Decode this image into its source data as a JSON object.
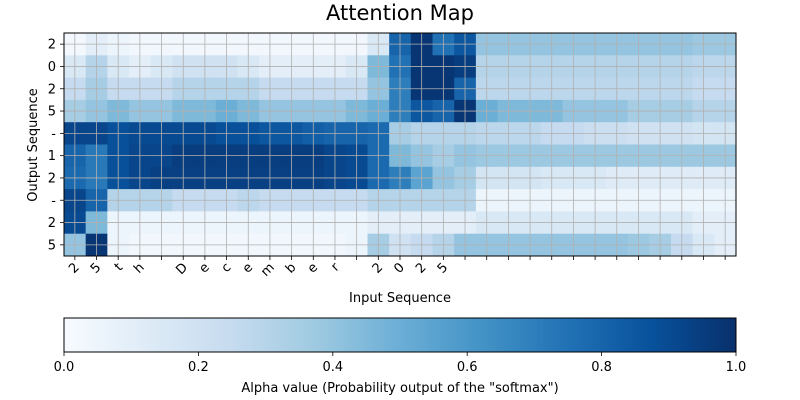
{
  "chart_data": {
    "type": "heatmap",
    "title": "Attention Map",
    "xlabel": "Input Sequence",
    "ylabel": "Output Sequence",
    "x_tick_labels": [
      "2",
      "5",
      "t",
      "h",
      "",
      "D",
      "e",
      "c",
      "e",
      "m",
      "b",
      "e",
      "r",
      "",
      "2",
      "0",
      "2",
      "5",
      "",
      "",
      "",
      "",
      "",
      "",
      "",
      "",
      "",
      "",
      "",
      "",
      ""
    ],
    "y_tick_labels": [
      "2",
      "0",
      "2",
      "5",
      "-",
      "1",
      "2",
      "-",
      "2",
      "5"
    ],
    "colormap": "Blues",
    "grid": true,
    "value_range": [
      0.0,
      1.0
    ],
    "values": [
      [
        0.02,
        0.1,
        0.05,
        0.03,
        0.03,
        0.03,
        0.03,
        0.03,
        0.03,
        0.03,
        0.03,
        0.03,
        0.03,
        0.03,
        0.15,
        0.8,
        0.98,
        0.75,
        0.85,
        0.4,
        0.4,
        0.4,
        0.4,
        0.4,
        0.4,
        0.4,
        0.4,
        0.4,
        0.4,
        0.38,
        0.38
      ],
      [
        0.15,
        0.3,
        0.15,
        0.1,
        0.15,
        0.2,
        0.2,
        0.2,
        0.15,
        0.1,
        0.1,
        0.1,
        0.1,
        0.15,
        0.45,
        0.75,
        0.98,
        0.98,
        0.95,
        0.3,
        0.3,
        0.3,
        0.3,
        0.3,
        0.3,
        0.3,
        0.3,
        0.3,
        0.3,
        0.28,
        0.28
      ],
      [
        0.25,
        0.35,
        0.25,
        0.25,
        0.25,
        0.3,
        0.3,
        0.3,
        0.3,
        0.25,
        0.25,
        0.25,
        0.25,
        0.25,
        0.4,
        0.7,
        0.98,
        0.98,
        0.8,
        0.28,
        0.28,
        0.28,
        0.28,
        0.28,
        0.28,
        0.28,
        0.28,
        0.28,
        0.28,
        0.25,
        0.25
      ],
      [
        0.35,
        0.4,
        0.45,
        0.4,
        0.4,
        0.45,
        0.45,
        0.5,
        0.45,
        0.4,
        0.4,
        0.4,
        0.4,
        0.45,
        0.5,
        0.7,
        0.85,
        0.8,
        0.98,
        0.5,
        0.45,
        0.45,
        0.45,
        0.4,
        0.4,
        0.4,
        0.35,
        0.35,
        0.35,
        0.3,
        0.3
      ],
      [
        0.92,
        0.92,
        0.88,
        0.9,
        0.9,
        0.9,
        0.9,
        0.88,
        0.88,
        0.85,
        0.85,
        0.82,
        0.8,
        0.8,
        0.78,
        0.35,
        0.3,
        0.3,
        0.3,
        0.28,
        0.28,
        0.28,
        0.25,
        0.25,
        0.22,
        0.22,
        0.2,
        0.2,
        0.2,
        0.18,
        0.18
      ],
      [
        0.8,
        0.72,
        0.88,
        0.92,
        0.92,
        0.95,
        0.95,
        0.95,
        0.95,
        0.95,
        0.95,
        0.95,
        0.92,
        0.9,
        0.78,
        0.45,
        0.4,
        0.35,
        0.4,
        0.38,
        0.38,
        0.38,
        0.38,
        0.38,
        0.38,
        0.38,
        0.38,
        0.38,
        0.38,
        0.38,
        0.38
      ],
      [
        0.78,
        0.72,
        0.88,
        0.92,
        0.94,
        0.94,
        0.94,
        0.94,
        0.94,
        0.94,
        0.94,
        0.94,
        0.92,
        0.9,
        0.78,
        0.7,
        0.55,
        0.4,
        0.35,
        0.18,
        0.18,
        0.18,
        0.15,
        0.15,
        0.15,
        0.12,
        0.12,
        0.12,
        0.12,
        0.12,
        0.12
      ],
      [
        0.92,
        0.8,
        0.3,
        0.3,
        0.3,
        0.25,
        0.25,
        0.25,
        0.28,
        0.25,
        0.25,
        0.25,
        0.25,
        0.25,
        0.3,
        0.3,
        0.3,
        0.3,
        0.3,
        0.05,
        0.05,
        0.05,
        0.05,
        0.05,
        0.05,
        0.05,
        0.05,
        0.05,
        0.05,
        0.05,
        0.05
      ],
      [
        0.9,
        0.45,
        0.05,
        0.05,
        0.05,
        0.05,
        0.05,
        0.05,
        0.05,
        0.05,
        0.05,
        0.05,
        0.05,
        0.05,
        0.1,
        0.1,
        0.1,
        0.1,
        0.1,
        0.15,
        0.15,
        0.15,
        0.15,
        0.15,
        0.15,
        0.15,
        0.15,
        0.15,
        0.15,
        0.1,
        0.1
      ],
      [
        0.4,
        0.98,
        0.05,
        0.03,
        0.03,
        0.03,
        0.03,
        0.03,
        0.03,
        0.03,
        0.03,
        0.03,
        0.03,
        0.05,
        0.35,
        0.2,
        0.25,
        0.3,
        0.4,
        0.4,
        0.4,
        0.4,
        0.4,
        0.4,
        0.4,
        0.4,
        0.38,
        0.35,
        0.25,
        0.15,
        0.1
      ]
    ],
    "colorbar": {
      "label": "Alpha value (Probability output of the \"softmax\")",
      "ticks": [
        "0.0",
        "0.2",
        "0.4",
        "0.6",
        "0.8",
        "1.0"
      ],
      "tick_values": [
        0.0,
        0.2,
        0.4,
        0.6,
        0.8,
        1.0
      ]
    }
  }
}
